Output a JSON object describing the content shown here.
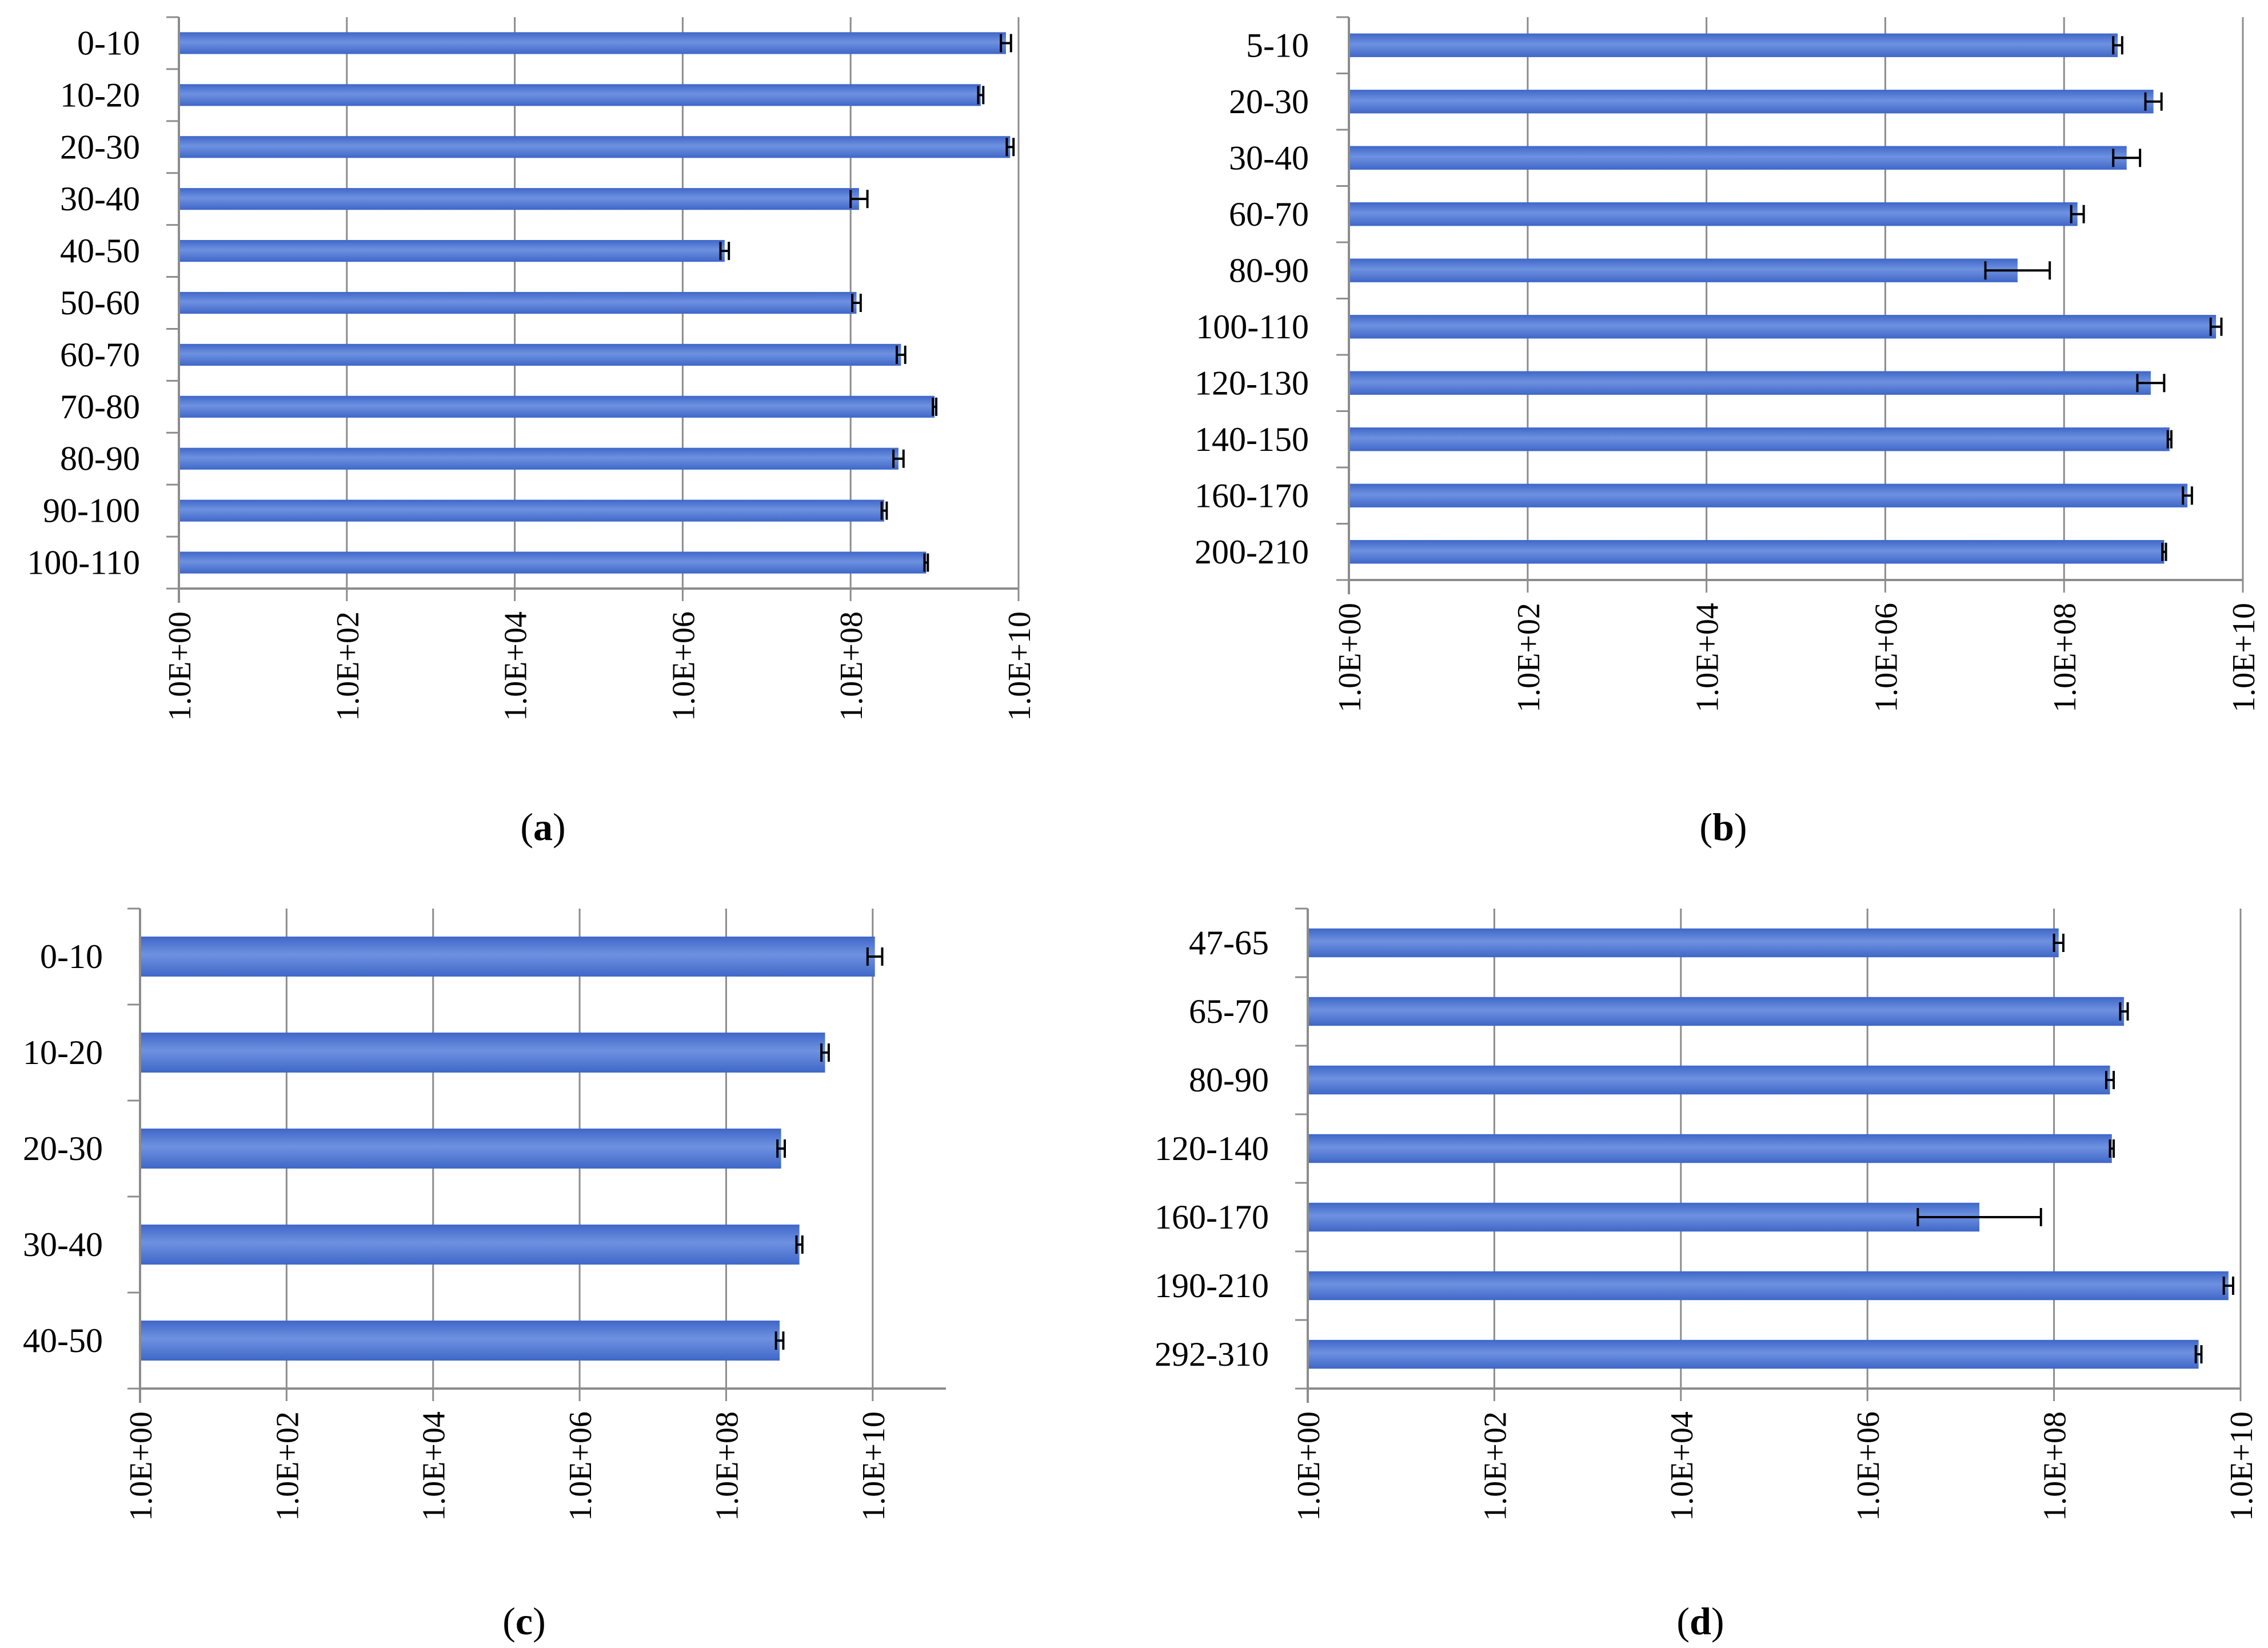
{
  "colors": {
    "bar": "#3f67c8",
    "bar_light": "#6e91e0",
    "axis": "#8c8c8c",
    "grid": "#8c8c8c",
    "error_bar": "#000000"
  },
  "chart_data": [
    {
      "id": "a",
      "type": "bar",
      "orientation": "horizontal",
      "panel_label": {
        "open": "(",
        "letter": "a",
        "close": ")"
      },
      "x_scale": "log10",
      "xlim": [
        0,
        10
      ],
      "tick_labels": [
        "1.0E+00",
        "1.0E+02",
        "1.0E+04",
        "1.0E+06",
        "1.0E+08",
        "1.0E+10"
      ],
      "grid": true,
      "categories": [
        "0-10",
        "10-20",
        "20-30",
        "30-40",
        "40-50",
        "50-60",
        "60-70",
        "70-80",
        "80-90",
        "90-100",
        "100-110"
      ],
      "log_values": [
        9.85,
        9.55,
        9.9,
        8.1,
        6.5,
        8.07,
        8.6,
        9.0,
        8.57,
        8.4,
        8.9
      ],
      "log_errors": [
        0.06,
        0.03,
        0.04,
        0.1,
        0.05,
        0.05,
        0.05,
        0.02,
        0.06,
        0.03,
        0.02
      ]
    },
    {
      "id": "b",
      "type": "bar",
      "orientation": "horizontal",
      "panel_label": {
        "open": "(",
        "letter": "b",
        "close": ")"
      },
      "x_scale": "log10",
      "xlim": [
        0,
        10
      ],
      "tick_labels": [
        "1.0E+00",
        "1.0E+02",
        "1.0E+04",
        "1.0E+06",
        "1.0E+08",
        "1.0E+10"
      ],
      "grid": true,
      "categories": [
        "5-10",
        "20-30",
        "30-40",
        "60-70",
        "80-90",
        "100-110",
        "120-130",
        "140-150",
        "160-170",
        "200-210"
      ],
      "log_values": [
        8.6,
        9.0,
        8.7,
        8.15,
        7.48,
        9.7,
        8.97,
        9.18,
        9.38,
        9.12
      ],
      "log_errors": [
        0.05,
        0.09,
        0.15,
        0.07,
        0.36,
        0.06,
        0.15,
        0.02,
        0.05,
        0.02
      ]
    },
    {
      "id": "c",
      "type": "bar",
      "orientation": "horizontal",
      "panel_label": {
        "open": "(",
        "letter": "c",
        "close": ")"
      },
      "x_scale": "log10",
      "xlim": [
        0,
        11
      ],
      "tick_labels": [
        "1.0E+00",
        "1.0E+02",
        "1.0E+04",
        "1.0E+06",
        "1.0E+08",
        "1.0E+10"
      ],
      "grid": true,
      "categories": [
        "0-10",
        "10-20",
        "20-30",
        "30-40",
        "40-50"
      ],
      "log_values": [
        10.03,
        9.35,
        8.75,
        9.0,
        8.73
      ],
      "log_errors": [
        0.1,
        0.05,
        0.05,
        0.04,
        0.05
      ]
    },
    {
      "id": "d",
      "type": "bar",
      "orientation": "horizontal",
      "panel_label": {
        "open": "(",
        "letter": "d",
        "close": ")"
      },
      "x_scale": "log10",
      "xlim": [
        0,
        10
      ],
      "tick_labels": [
        "1.0E+00",
        "1.0E+02",
        "1.0E+04",
        "1.0E+06",
        "1.0E+08",
        "1.0E+10"
      ],
      "grid": true,
      "categories": [
        "47-65",
        "65-70",
        "80-90",
        "120-140",
        "160-170",
        "190-210",
        "292-310"
      ],
      "log_values": [
        8.05,
        8.75,
        8.6,
        8.62,
        7.2,
        9.87,
        9.55
      ],
      "log_errors": [
        0.05,
        0.04,
        0.04,
        0.02,
        0.66,
        0.05,
        0.03
      ]
    }
  ]
}
